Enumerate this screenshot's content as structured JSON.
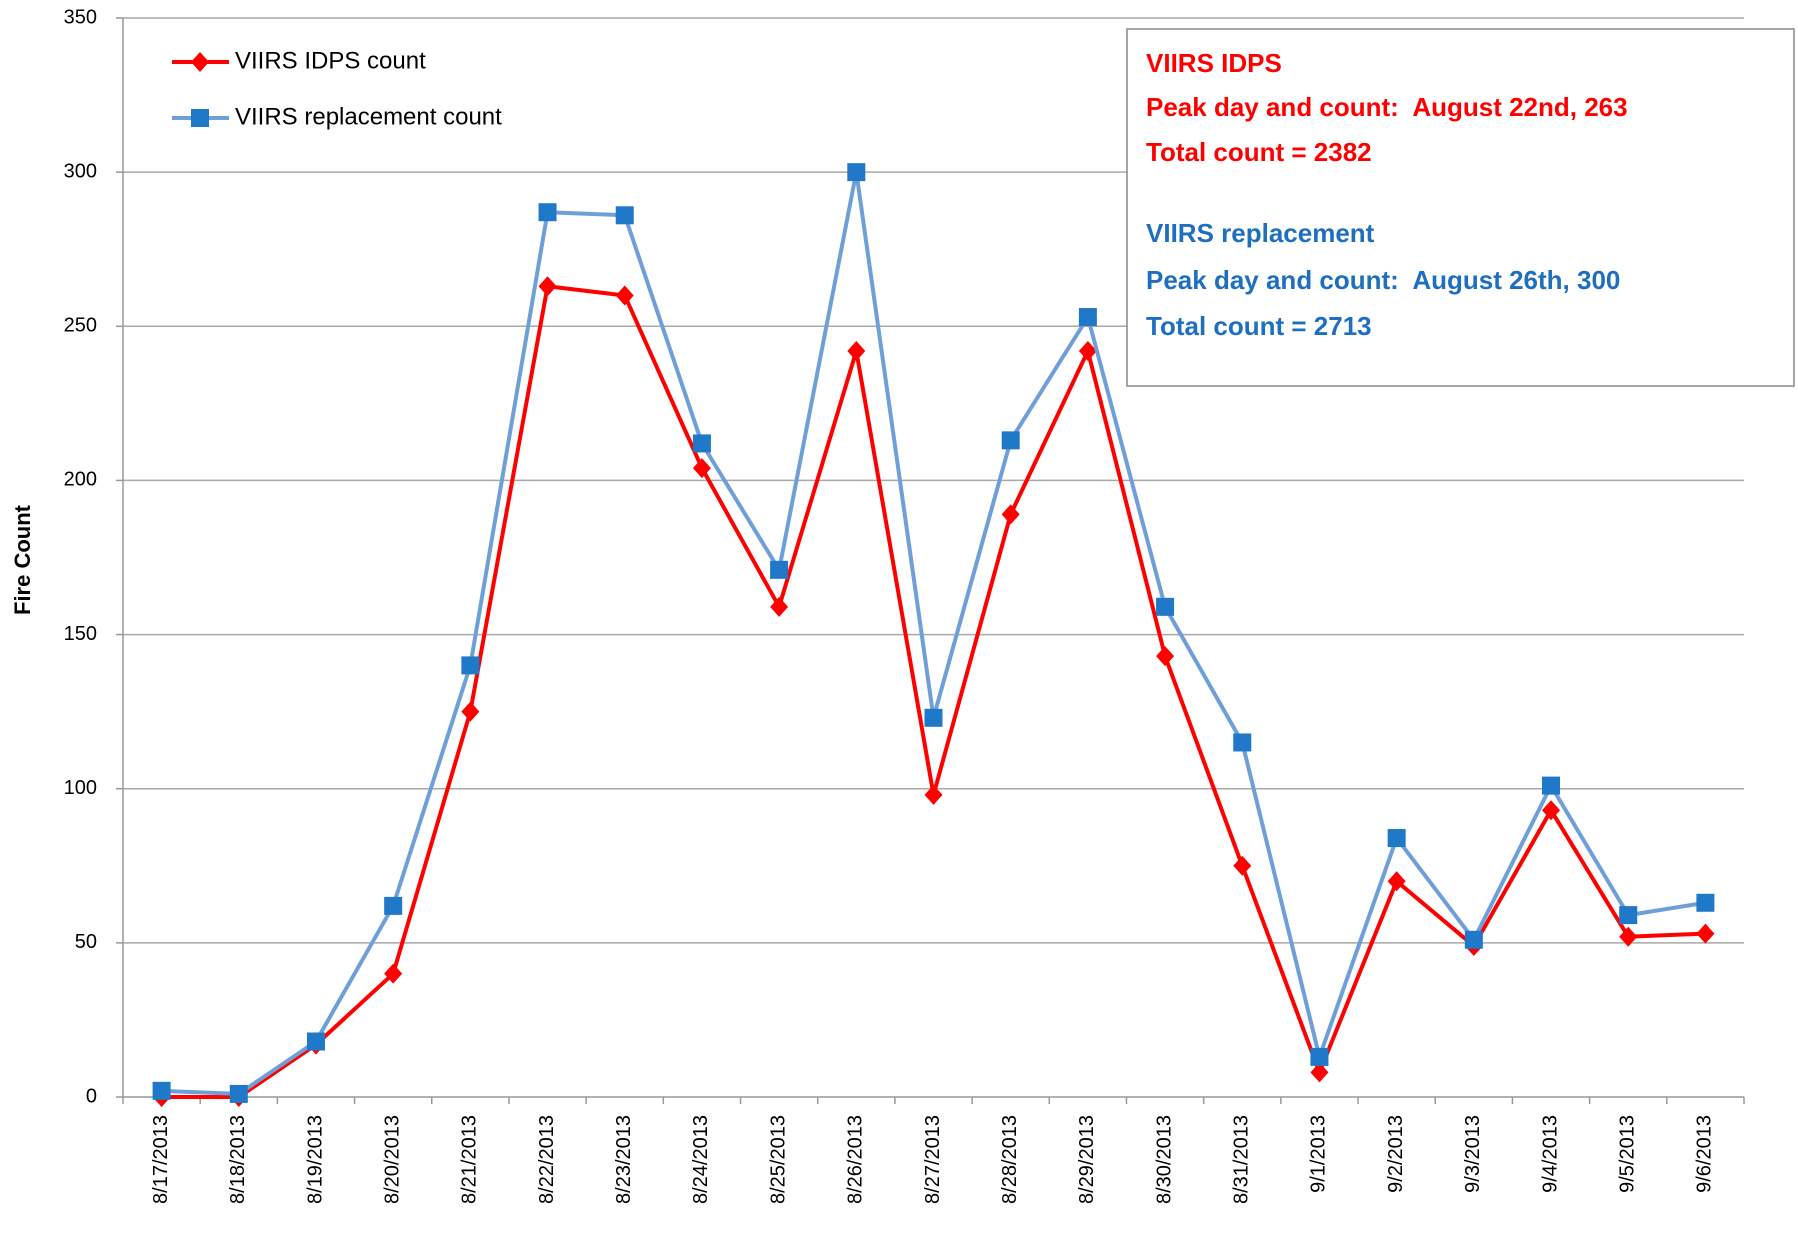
{
  "chart_data": {
    "type": "line",
    "ylabel": "Fire Count",
    "categories": [
      "8/17/2013",
      "8/18/2013",
      "8/19/2013",
      "8/20/2013",
      "8/21/2013",
      "8/22/2013",
      "8/23/2013",
      "8/24/2013",
      "8/25/2013",
      "8/26/2013",
      "8/27/2013",
      "8/28/2013",
      "8/29/2013",
      "8/30/2013",
      "8/31/2013",
      "9/1/2013",
      "9/2/2013",
      "9/3/2013",
      "9/4/2013",
      "9/5/2013",
      "9/6/2013"
    ],
    "series": [
      {
        "name": "VIIRS IDPS count",
        "color": "#ff0000",
        "marker": "diamond",
        "values": [
          0,
          0,
          17,
          40,
          125,
          263,
          260,
          204,
          159,
          242,
          98,
          189,
          242,
          143,
          75,
          8,
          70,
          49,
          93,
          52,
          53
        ]
      },
      {
        "name": "VIIRS replacement count",
        "color": "#6f9fd8",
        "marker_color": "#1f78c8",
        "marker": "square",
        "values": [
          2,
          1,
          18,
          62,
          140,
          287,
          286,
          212,
          171,
          300,
          123,
          213,
          253,
          159,
          115,
          13,
          84,
          51,
          101,
          59,
          63
        ]
      }
    ],
    "ylim": [
      0,
      350
    ],
    "yticks": [
      0,
      50,
      100,
      150,
      200,
      250,
      300,
      350
    ],
    "grid": true,
    "legend": "upper left",
    "annotations": [
      {
        "text": "VIIRS IDPS",
        "color": "#ff0000"
      },
      {
        "text": "Peak day and count:  August 22nd, 263",
        "color": "#ff0000"
      },
      {
        "text": "Total count = 2382",
        "color": "#ff0000"
      },
      {
        "text": "VIIRS replacement",
        "color": "#1f6fc0"
      },
      {
        "text": "Peak day and count:  August 26th, 300",
        "color": "#1f6fc0"
      },
      {
        "text": "Total count = 2713",
        "color": "#1f6fc0"
      }
    ]
  }
}
